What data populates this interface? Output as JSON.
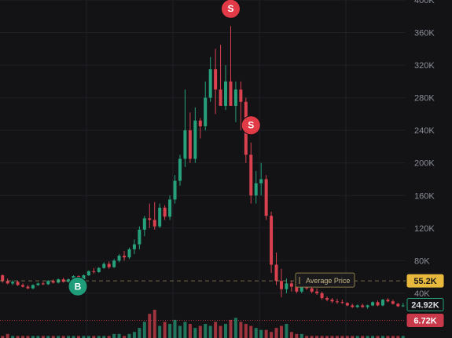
{
  "colors": {
    "background": "#131316",
    "grid": "#1f2026",
    "up": "#26a17b",
    "down": "#d9414f",
    "average_line": "#b8a56a",
    "average_tag": "#e8b93c",
    "last_tag_border": "#26a17b",
    "low_tag": "#c8394a",
    "marker_buy": "#1f9d7a",
    "marker_sell": "#e23b47"
  },
  "chart_data": {
    "type": "candlestick",
    "price_axis": {
      "range": [
        -15000,
        400000
      ],
      "ticks": [
        {
          "value": 400000,
          "label": "400K"
        },
        {
          "value": 360000,
          "label": "360K"
        },
        {
          "value": 320000,
          "label": "320K"
        },
        {
          "value": 280000,
          "label": "280K"
        },
        {
          "value": 240000,
          "label": "240K"
        },
        {
          "value": 200000,
          "label": "200K"
        },
        {
          "value": 160000,
          "label": "160K"
        },
        {
          "value": 120000,
          "label": "120K"
        },
        {
          "value": 80000,
          "label": "80K"
        },
        {
          "value": 40000,
          "label": "40K"
        }
      ]
    },
    "grid": true,
    "average_price": {
      "value": 55200,
      "label": "Average Price",
      "tag": "55.2K"
    },
    "last_price": {
      "value": 24920,
      "tag": "24.92K"
    },
    "low_line": {
      "value": 6720,
      "tag": "6.72K"
    },
    "ohlc": [
      [
        62000,
        63000,
        53000,
        55000
      ],
      [
        55000,
        58000,
        51000,
        52000
      ],
      [
        52000,
        56000,
        50000,
        54000
      ],
      [
        54000,
        55000,
        49000,
        50000
      ],
      [
        50000,
        52000,
        47000,
        48000
      ],
      [
        48000,
        50000,
        45000,
        46000
      ],
      [
        46000,
        51000,
        45000,
        50000
      ],
      [
        50000,
        53000,
        49000,
        52000
      ],
      [
        52000,
        54000,
        50000,
        51000
      ],
      [
        51000,
        56000,
        50000,
        55000
      ],
      [
        55000,
        57000,
        52000,
        53000
      ],
      [
        53000,
        58000,
        52000,
        57000
      ],
      [
        57000,
        59000,
        53000,
        54000
      ],
      [
        54000,
        58000,
        53000,
        57000
      ],
      [
        57000,
        62000,
        56000,
        61000
      ],
      [
        61000,
        62000,
        56000,
        57000
      ],
      [
        57000,
        63000,
        56000,
        62000
      ],
      [
        62000,
        68000,
        61000,
        67000
      ],
      [
        67000,
        71000,
        64000,
        66000
      ],
      [
        66000,
        72000,
        65000,
        71000
      ],
      [
        71000,
        78000,
        70000,
        76000
      ],
      [
        76000,
        79000,
        70000,
        72000
      ],
      [
        72000,
        82000,
        71000,
        80000
      ],
      [
        80000,
        88000,
        78000,
        86000
      ],
      [
        86000,
        92000,
        80000,
        84000
      ],
      [
        84000,
        96000,
        82000,
        94000
      ],
      [
        94000,
        106000,
        88000,
        100000
      ],
      [
        100000,
        122000,
        94000,
        118000
      ],
      [
        118000,
        135000,
        110000,
        132000
      ],
      [
        132000,
        150000,
        120000,
        130000
      ],
      [
        130000,
        152000,
        118000,
        122000
      ],
      [
        122000,
        150000,
        120000,
        145000
      ],
      [
        145000,
        148000,
        130000,
        134000
      ],
      [
        134000,
        160000,
        130000,
        155000
      ],
      [
        155000,
        185000,
        150000,
        178000
      ],
      [
        178000,
        210000,
        172000,
        205000
      ],
      [
        205000,
        290000,
        195000,
        240000
      ],
      [
        240000,
        262000,
        200000,
        205000
      ],
      [
        205000,
        268000,
        200000,
        252000
      ],
      [
        252000,
        255000,
        230000,
        245000
      ],
      [
        245000,
        300000,
        240000,
        280000
      ],
      [
        280000,
        330000,
        275000,
        315000
      ],
      [
        315000,
        340000,
        260000,
        290000
      ],
      [
        290000,
        345000,
        270000,
        270000
      ],
      [
        270000,
        320000,
        265000,
        300000
      ],
      [
        300000,
        368000,
        270000,
        270000
      ],
      [
        270000,
        300000,
        250000,
        290000
      ],
      [
        290000,
        300000,
        240000,
        275000
      ],
      [
        275000,
        280000,
        200000,
        210000
      ],
      [
        210000,
        225000,
        150000,
        160000
      ],
      [
        160000,
        190000,
        150000,
        175000
      ],
      [
        175000,
        200000,
        160000,
        180000
      ],
      [
        180000,
        185000,
        130000,
        135000
      ],
      [
        135000,
        140000,
        65000,
        75000
      ],
      [
        75000,
        90000,
        50000,
        55000
      ],
      [
        55000,
        70000,
        35000,
        45000
      ],
      [
        45000,
        58000,
        40000,
        52000
      ],
      [
        52000,
        55000,
        42000,
        48000
      ],
      [
        48000,
        52000,
        40000,
        42000
      ],
      [
        42000,
        50000,
        40000,
        48000
      ],
      [
        48000,
        52000,
        44000,
        46000
      ],
      [
        46000,
        49000,
        40000,
        42000
      ],
      [
        42000,
        46000,
        38000,
        40000
      ],
      [
        40000,
        42000,
        32000,
        34000
      ],
      [
        34000,
        36000,
        30000,
        32000
      ],
      [
        32000,
        34000,
        28000,
        30000
      ],
      [
        30000,
        33000,
        27000,
        29000
      ],
      [
        29000,
        32000,
        27000,
        28000
      ],
      [
        28000,
        29000,
        24000,
        25000
      ],
      [
        25000,
        27000,
        22000,
        23000
      ],
      [
        23000,
        26000,
        22000,
        25000
      ],
      [
        25000,
        27000,
        22000,
        23000
      ],
      [
        23000,
        26000,
        21000,
        25000
      ],
      [
        25000,
        30000,
        24000,
        29000
      ],
      [
        29000,
        31000,
        24000,
        25000
      ],
      [
        25000,
        33000,
        24000,
        32000
      ],
      [
        32000,
        34000,
        29000,
        30000
      ],
      [
        30000,
        32000,
        26000,
        27000
      ],
      [
        27000,
        28000,
        23000,
        24000
      ],
      [
        24000,
        28000,
        23000,
        24920
      ]
    ],
    "volume": [
      1,
      2,
      1,
      1,
      1,
      1,
      1,
      1,
      1,
      1,
      1,
      1,
      1,
      1,
      1,
      1,
      1,
      1,
      1,
      1,
      1,
      1,
      2,
      2,
      1,
      2,
      3,
      5,
      8,
      12,
      14,
      6,
      8,
      7,
      9,
      6,
      8,
      7,
      5,
      6,
      7,
      6,
      8,
      6,
      7,
      9,
      10,
      8,
      7,
      6,
      5,
      4,
      4,
      3,
      5,
      6,
      7,
      3,
      2,
      2,
      1,
      1,
      1,
      1,
      1,
      1,
      1,
      1,
      1,
      1,
      1,
      1,
      1,
      1,
      1,
      1,
      1,
      1,
      1,
      1
    ],
    "markers": [
      {
        "index": 15,
        "type": "buy",
        "label": "B"
      },
      {
        "index": 45,
        "type": "sell",
        "label": "S"
      },
      {
        "index": 49,
        "type": "sell",
        "label": "S"
      }
    ]
  }
}
